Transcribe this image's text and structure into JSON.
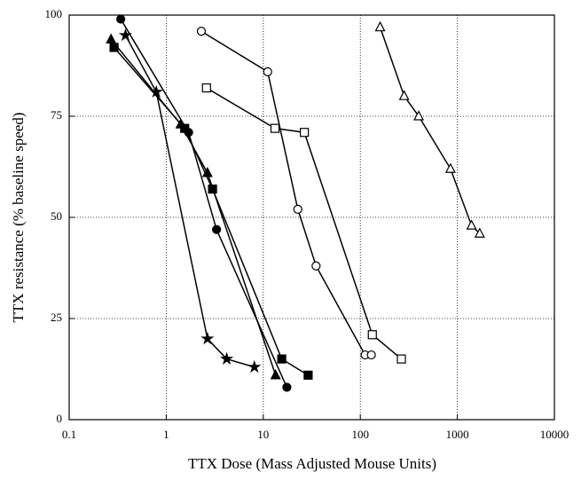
{
  "chart_data": {
    "type": "line",
    "x_label": "TTX Dose (Mass Adjusted Mouse Units)",
    "y_label": "TTX resistance (% baseline speed)",
    "xlim": [
      0.1,
      10000
    ],
    "xticks": [
      0.1,
      1,
      10,
      100,
      1000,
      10000
    ],
    "xscale": "log",
    "ylim": [
      0,
      100
    ],
    "yticks": [
      0,
      25,
      50,
      75,
      100
    ],
    "grid": true,
    "series": [
      {
        "color": "#000000",
        "marker": "circle",
        "filled": true,
        "x": [
          0.34,
          1.7,
          3.3,
          17.5
        ],
        "values": [
          99,
          71,
          47,
          8
        ]
      },
      {
        "color": "#000000",
        "marker": "triangle",
        "filled": true,
        "x": [
          0.27,
          1.41,
          2.66,
          13.4
        ],
        "values": [
          94,
          73,
          61,
          11
        ]
      },
      {
        "color": "#000000",
        "marker": "square",
        "filled": true,
        "x": [
          0.29,
          1.55,
          3.0,
          15.5,
          29
        ],
        "values": [
          92,
          72,
          57,
          15,
          11
        ]
      },
      {
        "color": "#000000",
        "marker": "star",
        "filled": true,
        "x": [
          0.38,
          0.79,
          2.66,
          4.2,
          8.1
        ],
        "values": [
          95,
          81,
          20,
          15,
          13
        ]
      },
      {
        "color": "#000000",
        "marker": "circle",
        "filled": false,
        "x": [
          2.3,
          11.1,
          22.7,
          35,
          112,
          130
        ],
        "values": [
          96,
          86,
          52,
          38,
          16,
          16
        ]
      },
      {
        "color": "#000000",
        "marker": "square",
        "filled": false,
        "x": [
          2.6,
          13.2,
          26.5,
          133,
          265
        ],
        "values": [
          82,
          72,
          71,
          21,
          15
        ]
      },
      {
        "color": "#000000",
        "marker": "triangle",
        "filled": false,
        "x": [
          160,
          283,
          400,
          850,
          1400,
          1700
        ],
        "values": [
          97,
          80,
          75,
          62,
          48,
          46
        ]
      }
    ]
  }
}
